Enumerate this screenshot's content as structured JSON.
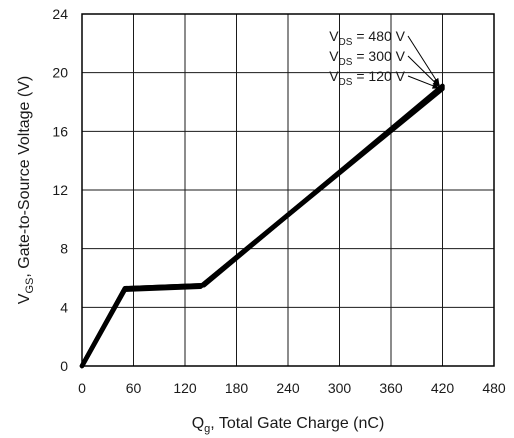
{
  "chart_data": {
    "type": "line",
    "xlim": [
      0,
      480
    ],
    "ylim": [
      0,
      24
    ],
    "xticks": [
      0,
      60,
      120,
      180,
      240,
      300,
      360,
      420,
      480
    ],
    "yticks": [
      0,
      4,
      8,
      12,
      16,
      20,
      24
    ],
    "grid": true,
    "xlabel": {
      "main": "Q",
      "sub": "g",
      "rest": ", Total Gate Charge (nC)"
    },
    "ylabel": {
      "main": "V",
      "sub": "GS",
      "rest": ", Gate-to-Source Voltage (V)"
    },
    "series": [
      {
        "name": "VDS = 480 V",
        "x": [
          0,
          50,
          142,
          420
        ],
        "y": [
          0,
          5.3,
          5.5,
          19.1
        ]
      },
      {
        "name": "VDS = 300 V",
        "x": [
          0,
          50,
          140,
          420
        ],
        "y": [
          0,
          5.3,
          5.5,
          19.0
        ]
      },
      {
        "name": "VDS = 120 V",
        "x": [
          0,
          50,
          138,
          420
        ],
        "y": [
          0,
          5.2,
          5.4,
          18.9
        ]
      }
    ],
    "annotations": [
      {
        "pre": "V",
        "sub": "DS",
        "post": " = 480 V",
        "target": [
          420,
          19.0
        ]
      },
      {
        "pre": "V",
        "sub": "DS",
        "post": " = 300 V",
        "target": [
          420,
          19.0
        ]
      },
      {
        "pre": "V",
        "sub": "DS",
        "post": " = 120 V",
        "target": [
          420,
          19.0
        ]
      }
    ],
    "colors": {
      "line": "#000000",
      "grid": "#1a1a1a",
      "text": "#1a1a1a"
    }
  }
}
